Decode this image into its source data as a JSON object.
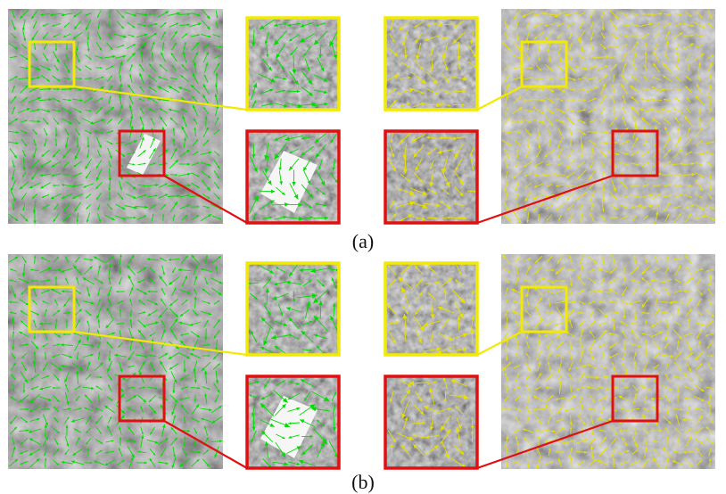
{
  "figure": {
    "panels": [
      {
        "label": "(a)",
        "left_arrow_color": "#00dd00",
        "right_arrow_color": "#e8e000"
      },
      {
        "label": "(b)",
        "left_arrow_color": "#00dd00",
        "right_arrow_color": "#e8e000"
      }
    ],
    "colors": {
      "yellow_box": "#f2ea00",
      "red_box": "#e01010",
      "caption": "#111111"
    }
  }
}
